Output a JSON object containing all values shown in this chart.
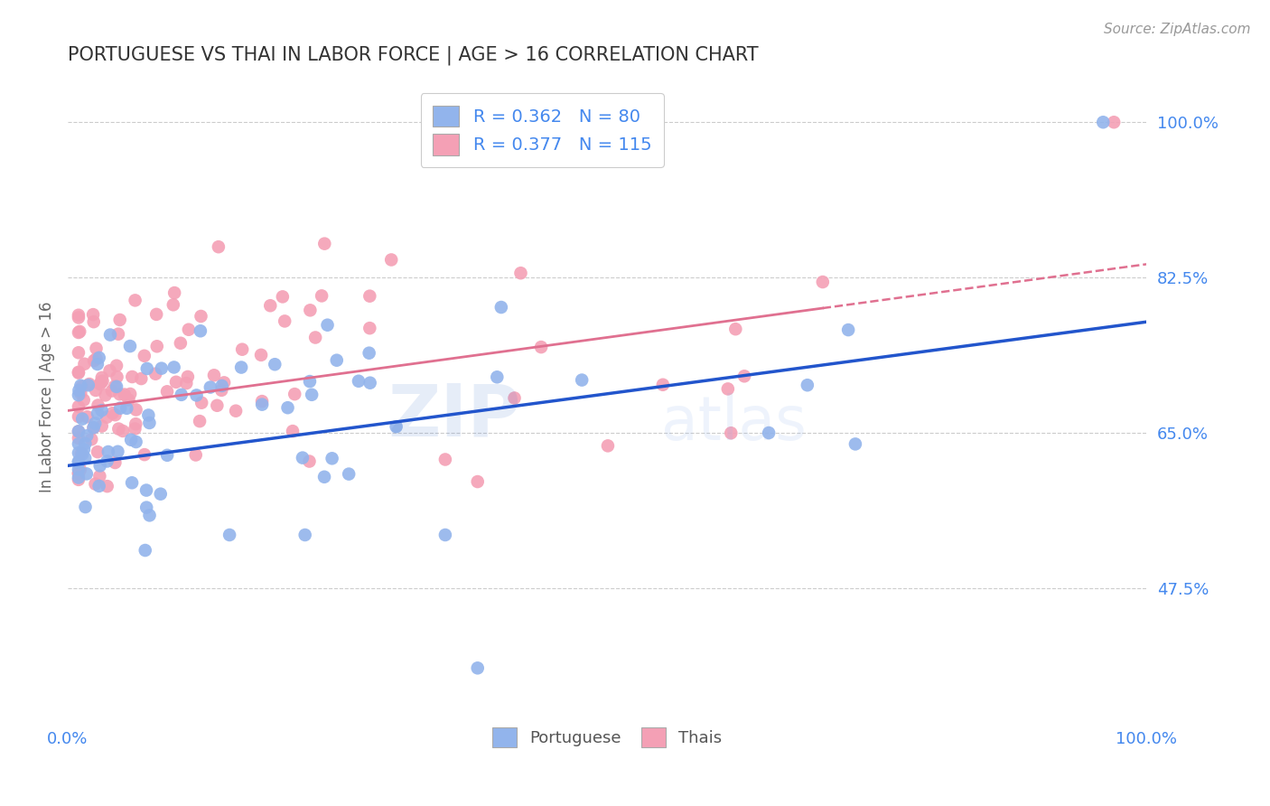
{
  "title": "PORTUGUESE VS THAI IN LABOR FORCE | AGE > 16 CORRELATION CHART",
  "source_text": "Source: ZipAtlas.com",
  "ylabel": "In Labor Force | Age > 16",
  "right_ytick_labels": [
    "100.0%",
    "82.5%",
    "65.0%",
    "47.5%"
  ],
  "right_ytick_values": [
    1.0,
    0.825,
    0.65,
    0.475
  ],
  "xlim": [
    0.0,
    1.0
  ],
  "ylim": [
    0.33,
    1.05
  ],
  "portuguese_R": 0.362,
  "portuguese_N": 80,
  "thai_R": 0.377,
  "thai_N": 115,
  "portuguese_color": "#92B4EC",
  "thai_color": "#F4A0B5",
  "portuguese_line_color": "#2255CC",
  "thai_line_color": "#E07090",
  "watermark_color": "#92B4EC",
  "grid_color": "#CCCCCC",
  "label_color": "#4488EE",
  "background_color": "#FFFFFF",
  "legend_label_color": "#333333",
  "legend_N_color": "#4488EE"
}
